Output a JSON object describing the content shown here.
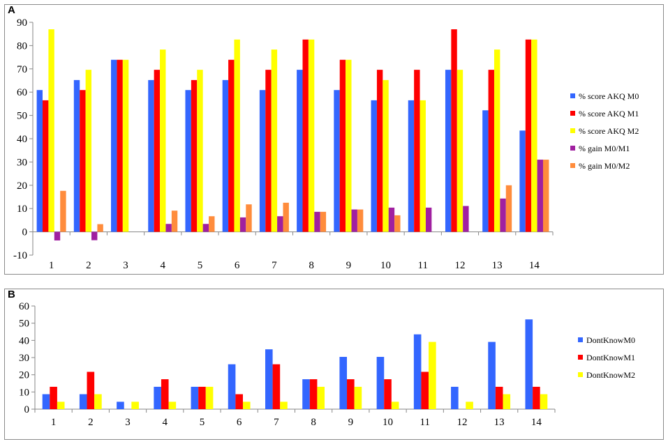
{
  "chart_data": [
    {
      "panel_label": "A",
      "type": "bar",
      "categories": [
        "1",
        "2",
        "3",
        "4",
        "5",
        "6",
        "7",
        "8",
        "9",
        "10",
        "11",
        "12",
        "13",
        "14"
      ],
      "ylim": [
        -10,
        90
      ],
      "yticks": [
        "-10",
        "0",
        "10",
        "20",
        "30",
        "40",
        "50",
        "60",
        "70",
        "80",
        "90"
      ],
      "grid": false,
      "legend_position": "right",
      "series": [
        {
          "name": "% score AKQ M0",
          "color": "#3366ff",
          "values": [
            60.9,
            65.2,
            73.9,
            65.2,
            60.9,
            65.2,
            60.9,
            69.6,
            60.9,
            56.5,
            56.5,
            69.6,
            52.2,
            43.5
          ]
        },
        {
          "name": "% score AKQ M1",
          "color": "#ff0000",
          "values": [
            56.5,
            60.9,
            73.9,
            69.6,
            65.2,
            73.9,
            69.6,
            82.6,
            73.9,
            69.6,
            69.6,
            87.0,
            69.6,
            82.6
          ]
        },
        {
          "name": "% score AKQ M2",
          "color": "#ffff00",
          "values": [
            87.0,
            69.6,
            73.9,
            78.3,
            69.6,
            82.6,
            78.3,
            82.6,
            73.9,
            65.2,
            56.5,
            69.6,
            78.3,
            82.6
          ]
        },
        {
          "name": "% gain M0/M1",
          "color": "#a020a0",
          "values": [
            -3.7,
            -3.6,
            0,
            3.4,
            3.4,
            6.2,
            6.7,
            8.6,
            9.6,
            10.4,
            10.4,
            11.1,
            14.3,
            31.0
          ]
        },
        {
          "name": "% gain M0/M2",
          "color": "#ff8c3c",
          "values": [
            17.6,
            3.3,
            0,
            9.1,
            6.7,
            11.8,
            12.5,
            8.6,
            9.6,
            7.1,
            0,
            0,
            20.0,
            31.0
          ]
        }
      ]
    },
    {
      "panel_label": "B",
      "type": "bar",
      "categories": [
        "1",
        "2",
        "3",
        "4",
        "5",
        "6",
        "7",
        "8",
        "9",
        "10",
        "11",
        "12",
        "13",
        "14"
      ],
      "ylim": [
        0,
        60
      ],
      "yticks": [
        "0",
        "10",
        "20",
        "30",
        "40",
        "50",
        "60"
      ],
      "grid": false,
      "legend_position": "right",
      "series": [
        {
          "name": "DontKnowM0",
          "color": "#3366ff",
          "values": [
            8.7,
            8.7,
            4.3,
            13.0,
            13.0,
            26.1,
            34.8,
            17.4,
            30.4,
            30.4,
            43.5,
            13.0,
            39.1,
            52.2
          ]
        },
        {
          "name": "DontKnowM1",
          "color": "#ff0000",
          "values": [
            13.0,
            21.7,
            0,
            17.4,
            13.0,
            8.7,
            26.1,
            17.4,
            17.4,
            17.4,
            21.7,
            0,
            13.0,
            13.0
          ]
        },
        {
          "name": "DontKnowM2",
          "color": "#ffff00",
          "values": [
            4.3,
            8.7,
            4.3,
            4.3,
            13.0,
            4.3,
            4.3,
            13.0,
            13.0,
            4.3,
            39.1,
            4.3,
            8.7,
            8.7
          ]
        }
      ]
    }
  ]
}
